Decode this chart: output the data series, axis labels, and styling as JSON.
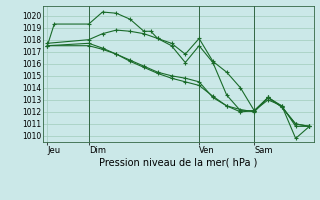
{
  "background_color": "#cbe8e8",
  "grid_color": "#a0ccbb",
  "line_color": "#1a6b2a",
  "marker_color": "#1a6b2a",
  "title": "Pression niveau de la mer( hPa )",
  "ylim": [
    1009.5,
    1020.8
  ],
  "yticks": [
    1010,
    1011,
    1012,
    1013,
    1014,
    1015,
    1016,
    1017,
    1018,
    1019,
    1020
  ],
  "xtick_labels": [
    "Jeu",
    "Dim",
    "Ven",
    "Sam"
  ],
  "xtick_positions": [
    0,
    3,
    11,
    15
  ],
  "xlim": [
    -0.3,
    19.3
  ],
  "vlines": [
    3,
    11,
    15
  ],
  "series": [
    {
      "x": [
        0,
        0.5,
        3,
        4,
        5,
        6,
        7,
        7.5,
        8,
        9,
        10,
        11,
        12,
        13,
        14,
        15,
        16,
        17,
        18,
        19
      ],
      "y": [
        1017.5,
        1019.3,
        1019.3,
        1020.3,
        1020.2,
        1019.7,
        1018.7,
        1018.7,
        1018.1,
        1017.5,
        1016.1,
        1017.5,
        1016.1,
        1013.4,
        1012.1,
        1012.1,
        1013.0,
        1012.5,
        1010.8,
        1010.8
      ]
    },
    {
      "x": [
        0,
        3,
        4,
        5,
        6,
        7,
        8,
        9,
        10,
        11,
        12,
        13,
        14,
        15,
        16,
        17,
        18,
        19
      ],
      "y": [
        1017.7,
        1018.0,
        1018.5,
        1018.8,
        1018.7,
        1018.5,
        1018.1,
        1017.7,
        1016.8,
        1018.1,
        1016.2,
        1015.3,
        1014.0,
        1012.1,
        1013.2,
        1012.4,
        1011.0,
        1010.8
      ]
    },
    {
      "x": [
        0,
        3,
        4,
        5,
        6,
        7,
        8,
        9,
        10,
        11,
        12,
        13,
        14,
        15,
        16,
        17,
        18,
        19
      ],
      "y": [
        1017.5,
        1017.7,
        1017.3,
        1016.8,
        1016.3,
        1015.8,
        1015.3,
        1015.0,
        1014.8,
        1014.5,
        1013.2,
        1012.5,
        1012.0,
        1012.1,
        1013.2,
        1012.4,
        1011.0,
        1010.8
      ]
    },
    {
      "x": [
        0,
        3,
        4,
        5,
        6,
        7,
        8,
        9,
        10,
        11,
        12,
        13,
        14,
        15,
        16,
        17,
        18,
        19
      ],
      "y": [
        1017.5,
        1017.5,
        1017.2,
        1016.8,
        1016.2,
        1015.7,
        1015.2,
        1014.8,
        1014.5,
        1014.2,
        1013.3,
        1012.5,
        1012.2,
        1012.0,
        1013.2,
        1012.5,
        1009.8,
        1010.8
      ]
    }
  ]
}
